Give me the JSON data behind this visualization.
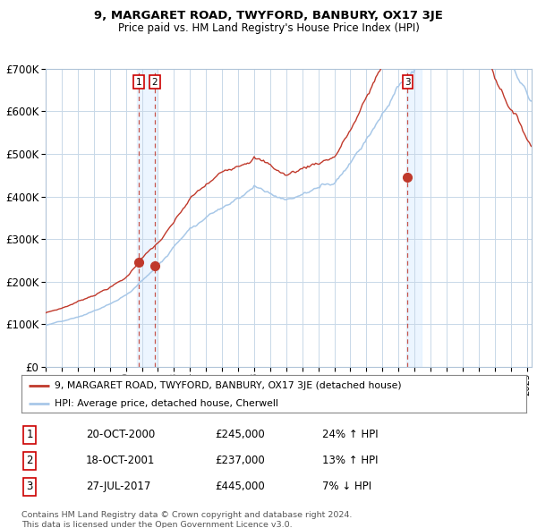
{
  "title": "9, MARGARET ROAD, TWYFORD, BANBURY, OX17 3JE",
  "subtitle": "Price paid vs. HM Land Registry's House Price Index (HPI)",
  "legend_entry1": "9, MARGARET ROAD, TWYFORD, BANBURY, OX17 3JE (detached house)",
  "legend_entry2": "HPI: Average price, detached house, Cherwell",
  "transactions": [
    {
      "num": 1,
      "date": "20-OCT-2000",
      "price": 245000,
      "hpi_rel": "24% ↑ HPI",
      "date_val": 2000.8
    },
    {
      "num": 2,
      "date": "18-OCT-2001",
      "price": 237000,
      "hpi_rel": "13% ↑ HPI",
      "date_val": 2001.8
    },
    {
      "num": 3,
      "date": "27-JUL-2017",
      "price": 445000,
      "hpi_rel": "7% ↓ HPI",
      "date_val": 2017.57
    }
  ],
  "footer": "Contains HM Land Registry data © Crown copyright and database right 2024.\nThis data is licensed under the Open Government Licence v3.0.",
  "ylim": [
    0,
    700000
  ],
  "xlim_start": 1995.0,
  "xlim_end": 2025.3,
  "color_red": "#c0392b",
  "color_blue": "#a8c8e8",
  "color_grid": "#c8d8e8",
  "color_highlight_blue": "#ddeeff",
  "background_color": "#ffffff"
}
